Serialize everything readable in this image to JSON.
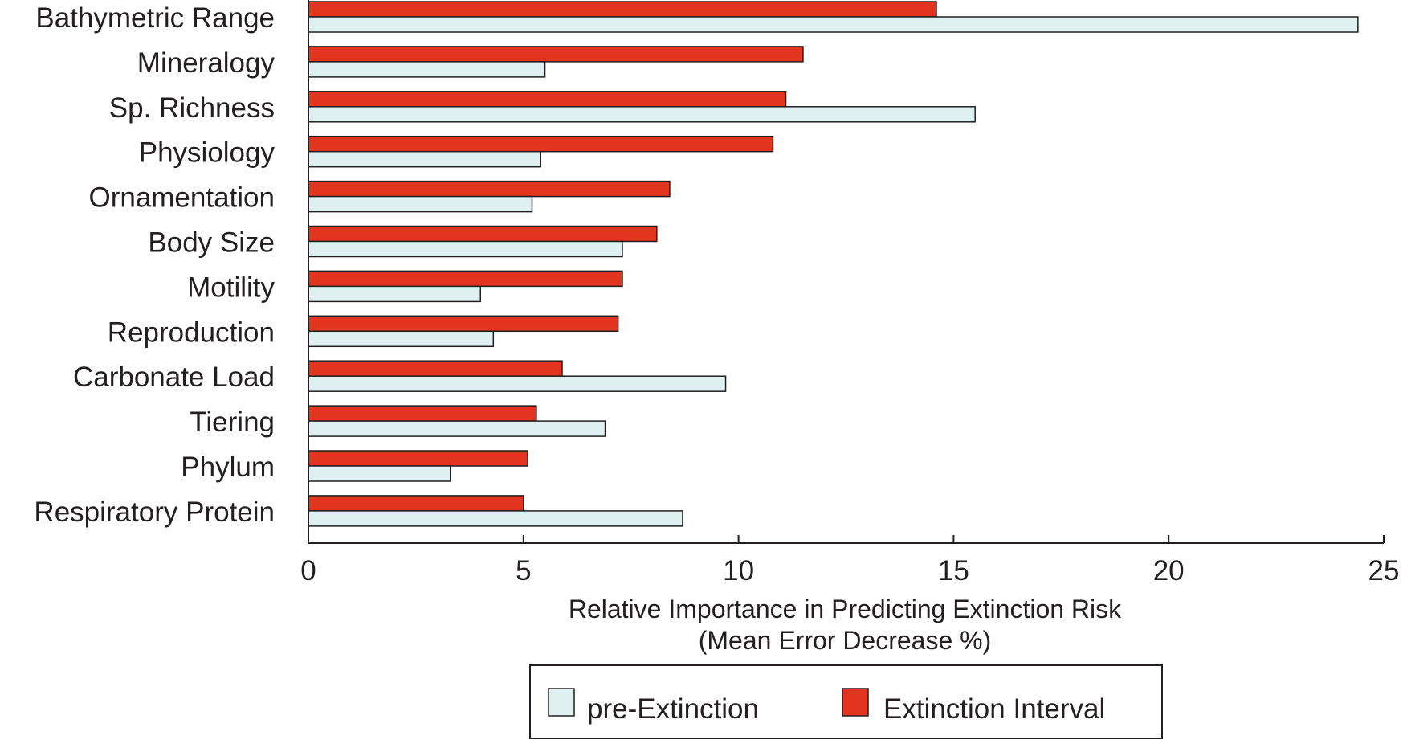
{
  "chart_data": {
    "type": "bar",
    "orientation": "horizontal",
    "categories": [
      "Bathymetric Range",
      "Mineralogy",
      "Sp. Richness",
      "Physiology",
      "Ornamentation",
      "Body Size",
      "Motility",
      "Reproduction",
      "Carbonate Load",
      "Tiering",
      "Phylum",
      "Respiratory Protein"
    ],
    "series": [
      {
        "name": "Extinction Interval",
        "color": "#e3341f",
        "values": [
          14.6,
          11.5,
          11.1,
          10.8,
          8.4,
          8.1,
          7.3,
          7.2,
          5.9,
          5.3,
          5.1,
          5.0
        ]
      },
      {
        "name": "pre-Extinction",
        "color": "#dff0f0",
        "values": [
          24.4,
          5.5,
          15.5,
          5.4,
          5.2,
          7.3,
          4.0,
          4.3,
          9.7,
          6.9,
          3.3,
          8.7
        ]
      }
    ],
    "xlim": [
      0,
      25
    ],
    "xticks": [
      0,
      5,
      10,
      15,
      20,
      25
    ],
    "xlabel": "Relative Importance in Predicting Extinction Risk",
    "xlabel_line2": "(Mean Error Decrease %)",
    "title": "",
    "ylabel": "",
    "grid": false,
    "legend_position": "bottom",
    "legend": [
      "pre-Extinction",
      "Extinction Interval"
    ]
  }
}
